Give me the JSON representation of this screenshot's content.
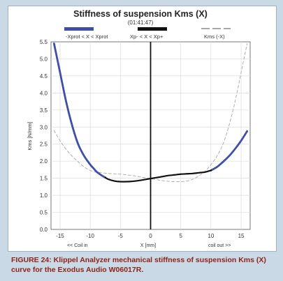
{
  "figure": {
    "caption_line1": "FIGURE 24: Klippel Analyzer mechanical stiffness of suspension Kms (X)",
    "caption_line2": "curve for the Exodus Audio W06017R."
  },
  "colors": {
    "background": "#c9d9e6",
    "panel": "#ffffff",
    "caption": "#8e2318",
    "blue": "#3d4fa8",
    "black": "#111111",
    "gray": "#a8a8a8",
    "grid": "#dcdcdc"
  },
  "chart_data": {
    "type": "line",
    "title": "Stiffness of suspension Kms (X)",
    "subtitle": "(01:41:47)",
    "xlabel": "X [mm]",
    "xlabel_left": "<< Coil in",
    "xlabel_right": "coil out >>",
    "ylabel": "Kms [N/mm]",
    "xlim": [
      -16.5,
      16.5
    ],
    "ylim": [
      0,
      5.5
    ],
    "xticks": [
      -15,
      -10,
      -5,
      0,
      5,
      10,
      15
    ],
    "yticks": [
      "0.0",
      "0.5",
      "1.0",
      "1.5",
      "2.0",
      "2.5",
      "3.0",
      "3.5",
      "4.0",
      "4.5",
      "5.0",
      "5.5"
    ],
    "grid": true,
    "legend": [
      "-Xprot < X < Xprot",
      "Xp- < X < Xp+",
      "Kms (-X)"
    ],
    "legend_placement": "top",
    "series": [
      {
        "name": "-Xprot < X < Xprot",
        "style": "solid-blue",
        "x": [
          -16,
          -15,
          -14,
          -13,
          -12,
          -11,
          -10,
          -9.5,
          -9,
          -8.5,
          -8,
          -7.5,
          10,
          11,
          12,
          13,
          14,
          15,
          16
        ],
        "y": [
          5.45,
          4.6,
          3.75,
          3.05,
          2.5,
          2.15,
          1.9,
          1.8,
          1.7,
          1.63,
          1.57,
          1.52,
          1.73,
          1.83,
          1.98,
          2.15,
          2.36,
          2.6,
          2.88
        ]
      },
      {
        "name": "Xp- < X < Xp+",
        "style": "solid-black",
        "x": [
          -7.5,
          -7,
          -6,
          -5,
          -4,
          -3,
          -2,
          -1,
          0,
          1,
          2,
          3,
          4,
          5,
          6,
          7,
          8,
          9,
          10
        ],
        "y": [
          1.52,
          1.47,
          1.42,
          1.4,
          1.4,
          1.41,
          1.43,
          1.46,
          1.49,
          1.52,
          1.55,
          1.58,
          1.6,
          1.62,
          1.63,
          1.64,
          1.66,
          1.68,
          1.73
        ]
      },
      {
        "name": "Kms (-X)",
        "style": "dashed-gray",
        "x": [
          -16,
          -15,
          -14,
          -13,
          -12,
          -11,
          -10,
          -9,
          -8,
          -7,
          -6,
          -5,
          -4,
          -3,
          -2,
          -1,
          0,
          1,
          2,
          3,
          4,
          5,
          6,
          7,
          8,
          9,
          10,
          11,
          12,
          13,
          14,
          15,
          16
        ],
        "y": [
          2.9,
          2.6,
          2.35,
          2.15,
          1.98,
          1.83,
          1.73,
          1.68,
          1.66,
          1.64,
          1.63,
          1.62,
          1.6,
          1.58,
          1.55,
          1.52,
          1.49,
          1.46,
          1.43,
          1.41,
          1.4,
          1.4,
          1.42,
          1.47,
          1.57,
          1.7,
          1.9,
          2.15,
          2.5,
          3.05,
          3.75,
          4.6,
          5.45
        ]
      }
    ]
  }
}
